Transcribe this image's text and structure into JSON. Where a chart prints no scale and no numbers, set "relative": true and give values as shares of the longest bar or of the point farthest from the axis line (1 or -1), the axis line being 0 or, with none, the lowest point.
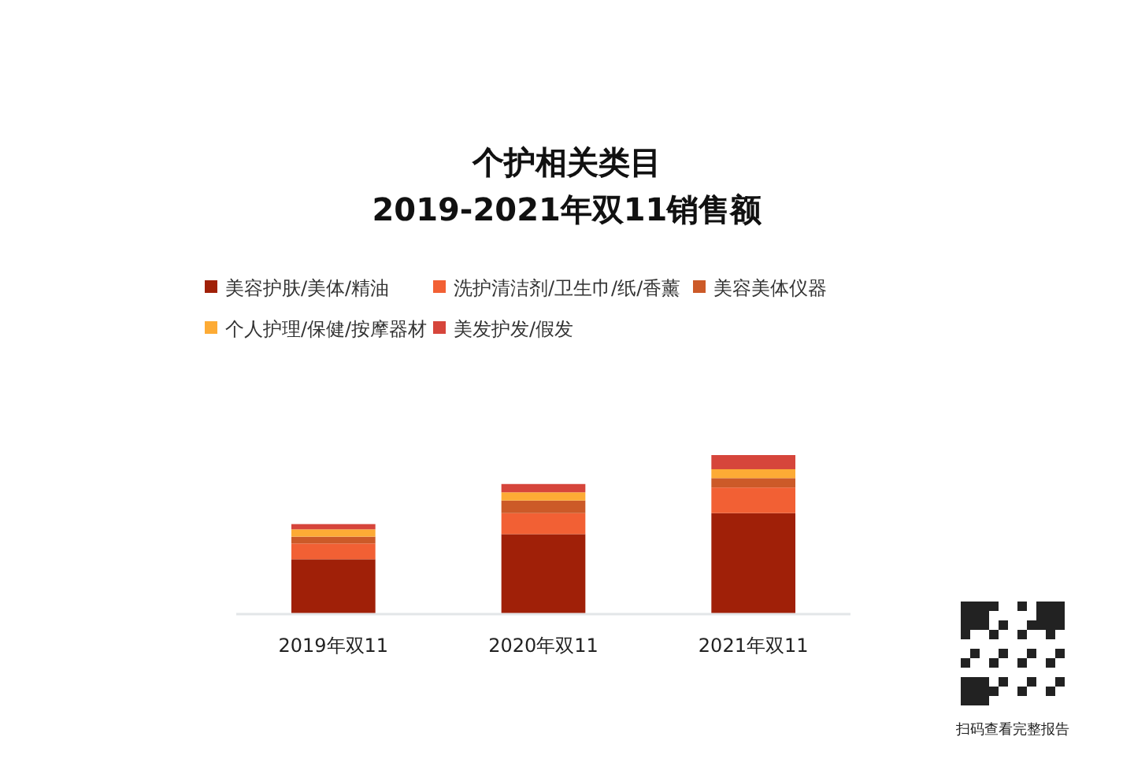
{
  "chart_data": {
    "type": "bar",
    "title": "个护相关类目",
    "subtitle": "2019-2021年双11销售额",
    "categories": [
      "2019年双11",
      "2020年双11",
      "2021年双11"
    ],
    "stacked": true,
    "relative": true,
    "legend": "top",
    "annotations": [
      "扫码查看完整报告"
    ],
    "series": [
      {
        "name": "美容护肤/美体/精油",
        "color": "#a02008",
        "values": [
          0.345,
          0.503,
          0.635
        ]
      },
      {
        "name": "洗护清洁剂/卫生巾/纸/香薰",
        "color": "#f26034",
        "values": [
          0.099,
          0.132,
          0.161
        ]
      },
      {
        "name": "美容美体仪器",
        "color": "#cc5a28",
        "values": [
          0.043,
          0.079,
          0.059
        ]
      },
      {
        "name": "个人护理/保健/按摩器材",
        "color": "#fdab35",
        "values": [
          0.046,
          0.052,
          0.056
        ]
      },
      {
        "name": "美发护发/假发",
        "color": "#d6453b",
        "values": [
          0.033,
          0.052,
          0.089
        ]
      }
    ]
  }
}
